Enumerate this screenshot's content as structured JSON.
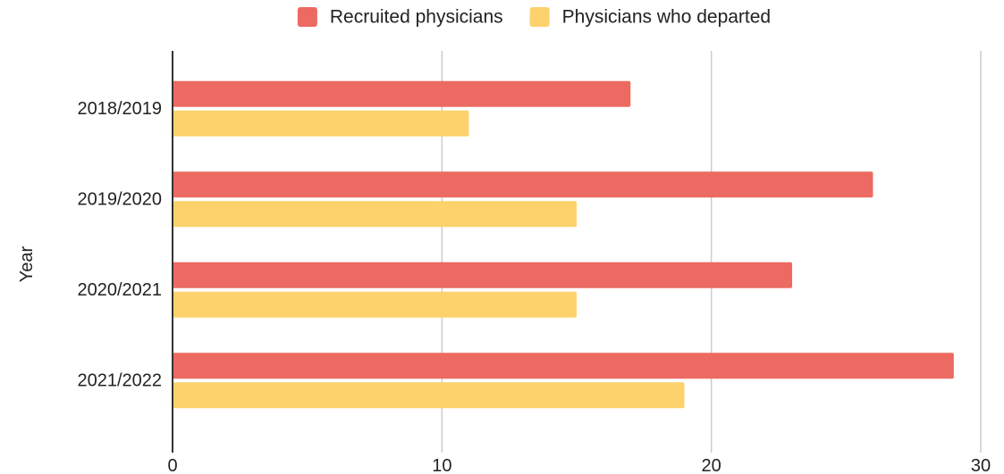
{
  "chart_data": {
    "type": "bar",
    "orientation": "horizontal",
    "categories": [
      "2018/2019",
      "2019/2020",
      "2020/2021",
      "2021/2022"
    ],
    "series": [
      {
        "name": "Recruited physicians",
        "color": "#ec6a61",
        "values": [
          17,
          26,
          23,
          29
        ]
      },
      {
        "name": "Physicians who departed",
        "color": "#fdd26c",
        "values": [
          11,
          15,
          15,
          19
        ]
      }
    ],
    "xlabel": "",
    "ylabel": "Year",
    "xlim": [
      0,
      30
    ],
    "xticks": [
      "0",
      "10",
      "20",
      "30"
    ],
    "grid": true,
    "gridline_color": "#cccccc",
    "axis_color": "#333333",
    "legend_position": "top"
  }
}
